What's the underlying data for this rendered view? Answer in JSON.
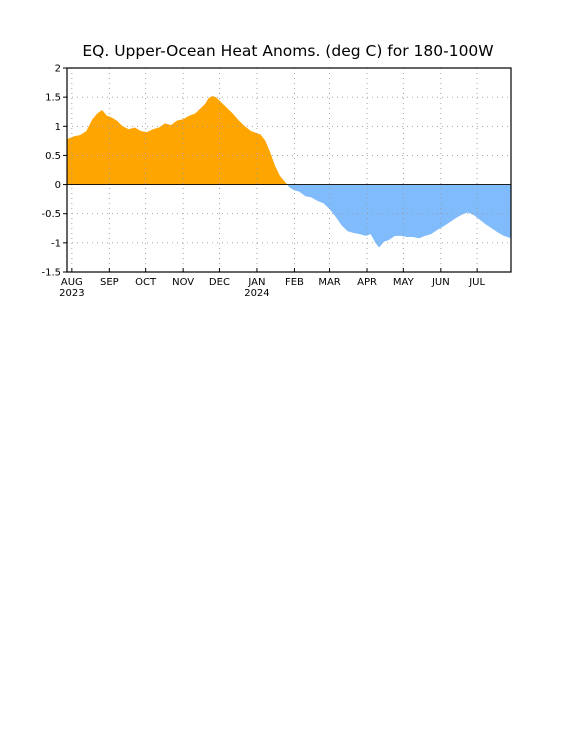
{
  "chart_data": {
    "type": "area",
    "title": "EQ. Upper-Ocean Heat Anoms. (deg C) for 180-100W",
    "xlabel": "",
    "ylabel": "",
    "ylim": [
      -1.5,
      2
    ],
    "xlim": [
      "2023-07-28",
      "2024-07-29"
    ],
    "yticks": [
      -1.5,
      -1,
      -0.5,
      0,
      0.5,
      1,
      1.5,
      2
    ],
    "ytick_labels": [
      "-1.5",
      "-1",
      "-0.5",
      "0",
      "0.5",
      "1",
      "1.5",
      "2"
    ],
    "xticks": [
      {
        "date": "2023-08-01",
        "label": "AUG",
        "year": "2023"
      },
      {
        "date": "2023-09-01",
        "label": "SEP",
        "year": ""
      },
      {
        "date": "2023-10-01",
        "label": "OCT",
        "year": ""
      },
      {
        "date": "2023-11-01",
        "label": "NOV",
        "year": ""
      },
      {
        "date": "2023-12-01",
        "label": "DEC",
        "year": ""
      },
      {
        "date": "2024-01-01",
        "label": "JAN",
        "year": "2024"
      },
      {
        "date": "2024-02-01",
        "label": "FEB",
        "year": ""
      },
      {
        "date": "2024-03-01",
        "label": "MAR",
        "year": ""
      },
      {
        "date": "2024-04-01",
        "label": "APR",
        "year": ""
      },
      {
        "date": "2024-05-01",
        "label": "MAY",
        "year": ""
      },
      {
        "date": "2024-06-01",
        "label": "JUN",
        "year": ""
      },
      {
        "date": "2024-07-01",
        "label": "JUL",
        "year": ""
      }
    ],
    "grid": true,
    "colors": {
      "positive": "#ffa500",
      "negative": "#80bbfb"
    },
    "series": [
      {
        "x": [
          "2023-07-28",
          "2023-08-03",
          "2023-08-08",
          "2023-08-13",
          "2023-08-18",
          "2023-08-22",
          "2023-08-26",
          "2023-08-30",
          "2023-09-03",
          "2023-09-07",
          "2023-09-12",
          "2023-09-17",
          "2023-09-22",
          "2023-09-27",
          "2023-10-02",
          "2023-10-07",
          "2023-10-12",
          "2023-10-17",
          "2023-10-22",
          "2023-10-27",
          "2023-11-01",
          "2023-11-06",
          "2023-11-11",
          "2023-11-16",
          "2023-11-19",
          "2023-11-22",
          "2023-11-25",
          "2023-11-28",
          "2023-12-02",
          "2023-12-07",
          "2023-12-12",
          "2023-12-17",
          "2023-12-22",
          "2023-12-27",
          "2024-01-01",
          "2024-01-04",
          "2024-01-08",
          "2024-01-12",
          "2024-01-16",
          "2024-01-20",
          "2024-01-24",
          "2024-01-28",
          "2024-02-01",
          "2024-02-05",
          "2024-02-10",
          "2024-02-15",
          "2024-02-20",
          "2024-02-25",
          "2024-03-01",
          "2024-03-06",
          "2024-03-11",
          "2024-03-16",
          "2024-03-21",
          "2024-03-26",
          "2024-03-31",
          "2024-04-04",
          "2024-04-08",
          "2024-04-11",
          "2024-04-15",
          "2024-04-19",
          "2024-04-24",
          "2024-04-29",
          "2024-05-04",
          "2024-05-09",
          "2024-05-14",
          "2024-05-19",
          "2024-05-24",
          "2024-05-29",
          "2024-06-03",
          "2024-06-08",
          "2024-06-13",
          "2024-06-18",
          "2024-06-23",
          "2024-06-28",
          "2024-07-03",
          "2024-07-08",
          "2024-07-13",
          "2024-07-18",
          "2024-07-23",
          "2024-07-29"
        ],
        "y": [
          0.78,
          0.83,
          0.85,
          0.92,
          1.12,
          1.22,
          1.28,
          1.18,
          1.15,
          1.1,
          1.0,
          0.95,
          0.98,
          0.92,
          0.9,
          0.95,
          0.98,
          1.05,
          1.02,
          1.1,
          1.12,
          1.18,
          1.22,
          1.32,
          1.38,
          1.48,
          1.52,
          1.5,
          1.42,
          1.32,
          1.22,
          1.1,
          1.0,
          0.92,
          0.88,
          0.86,
          0.75,
          0.55,
          0.32,
          0.15,
          0.05,
          -0.05,
          -0.1,
          -0.12,
          -0.2,
          -0.22,
          -0.28,
          -0.32,
          -0.42,
          -0.55,
          -0.7,
          -0.8,
          -0.83,
          -0.85,
          -0.88,
          -0.85,
          -1.0,
          -1.08,
          -0.98,
          -0.95,
          -0.88,
          -0.88,
          -0.9,
          -0.9,
          -0.92,
          -0.88,
          -0.85,
          -0.78,
          -0.72,
          -0.65,
          -0.58,
          -0.52,
          -0.48,
          -0.52,
          -0.6,
          -0.68,
          -0.75,
          -0.82,
          -0.88,
          -0.92
        ]
      }
    ]
  }
}
